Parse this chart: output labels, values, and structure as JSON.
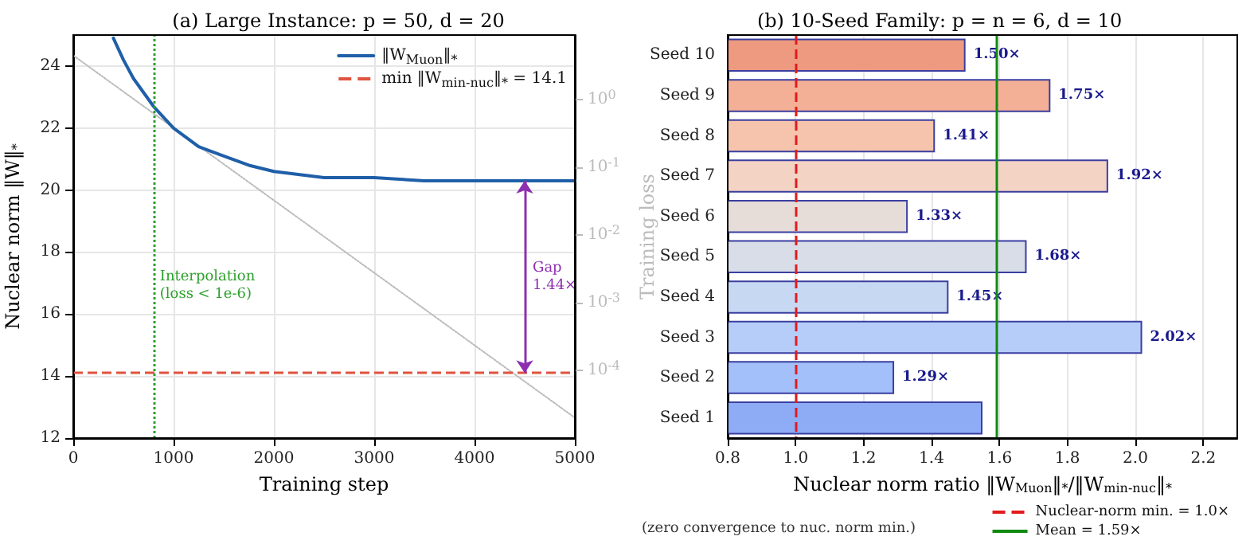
{
  "chart_data": [
    {
      "type": "line",
      "title": "(a) Large Instance: p = 50, d = 20",
      "xlabel": "Training step",
      "ylabel": "Nuclear norm ‖W‖$_{*}$",
      "y2label": "Training loss",
      "xlim": [
        0,
        5000
      ],
      "xticks": [
        0,
        1000,
        2000,
        3000,
        4000,
        5000
      ],
      "ylim": [
        12,
        25
      ],
      "yticks": [
        12,
        14,
        16,
        18,
        20,
        22,
        24
      ],
      "y2lim": [
        1e-05,
        9
      ],
      "y2ticks": [
        {
          "value": 1,
          "label": "10$^{0}$"
        },
        {
          "value": 0.1,
          "label": "10$^{-1}$"
        },
        {
          "value": 0.01,
          "label": "10$^{-2}$"
        },
        {
          "value": 0.001,
          "label": "10$^{-3}$"
        },
        {
          "value": 0.0001,
          "label": "10$^{-4}$"
        }
      ],
      "log": "y2",
      "grid": true,
      "legend": "top right",
      "series": [
        {
          "name": "‖W$_{Muon}$‖$_{*}$",
          "type": "line",
          "color": "#1f5fa8",
          "line_style": "solid",
          "x": [
            400,
            500,
            600,
            800,
            1000,
            1250,
            1500,
            1750,
            2000,
            2500,
            3000,
            3500,
            4000,
            5000
          ],
          "values": [
            24.9,
            24.2,
            23.6,
            22.7,
            22.0,
            21.4,
            21.1,
            20.8,
            20.6,
            20.4,
            20.4,
            20.3,
            20.3,
            20.3
          ]
        },
        {
          "type": "line",
          "axis": "y2",
          "color": "#bbbbbb",
          "line_style": "dotted",
          "x": [
            0,
            5000
          ],
          "values": [
            4.5,
            2e-05
          ]
        }
      ],
      "ref_lines": [
        {
          "axis": "y",
          "value": 14.1,
          "label": "min ‖W$_{min-nuc}$‖$_{*}$ = 14.1",
          "color": "#e0533f",
          "line_style": "dashed"
        },
        {
          "axis": "x",
          "value": 800,
          "color": "#2ca02c",
          "line_style": "dotted"
        }
      ],
      "annotations": [
        {
          "text": "Interpolation\n(loss < 1e-6)",
          "x": 800,
          "y": 16.9
        },
        "Gap\n1.44×"
      ]
    },
    {
      "type": "bar",
      "orientation": "horizontal",
      "title": "(b) 10-Seed Family: p = n = 6, d = 10",
      "xlabel": "Nuclear norm ratio ‖W$_{Muon}$‖$_{*}$/‖W$_{min-nuc}$‖$_{*}$",
      "categories": [
        "Seed 10",
        "Seed 9",
        "Seed 8",
        "Seed 7",
        "Seed 6",
        "Seed 5",
        "Seed 4",
        "Seed 3",
        "Seed 2",
        "Seed 1"
      ],
      "values": [
        1.5,
        1.75,
        1.41,
        1.92,
        1.33,
        1.68,
        1.45,
        2.02,
        1.29,
        1.55
      ],
      "colors": [
        "#ee9a80",
        "#f4b096",
        "#f6c4ad",
        "#f2d3c4",
        "#e6dcd8",
        "#d8dde8",
        "#c7d8f2",
        "#b6cdfa",
        "#a3c0fb",
        "#8eabf6"
      ],
      "value_labels": [
        "1.50×",
        "1.75×",
        "1.41×",
        "1.92×",
        "1.33×",
        "1.68×",
        "1.45×",
        "2.02×",
        "1.29×",
        null
      ],
      "xlim": [
        0.8,
        2.3
      ],
      "xticks": [
        0.8,
        {
          "value": 1,
          "label": "1.0"
        },
        1.2,
        1.4,
        1.6,
        1.8,
        {
          "value": 2,
          "label": "2.0"
        },
        2.2
      ],
      "grid": "x",
      "legend": "bottom right",
      "ref_lines": [
        {
          "axis": "x",
          "value": 1.0,
          "label": "Nuclear-norm min. = 1.0×",
          "color": "#e31a1c",
          "line_style": "dashed"
        },
        {
          "axis": "x",
          "value": 1.59,
          "label": "Mean = 1.59×",
          "color": "#108a10",
          "line_style": "solid"
        }
      ],
      "annotations": [
        "(zero convergence to nuc. norm min.)"
      ]
    }
  ]
}
